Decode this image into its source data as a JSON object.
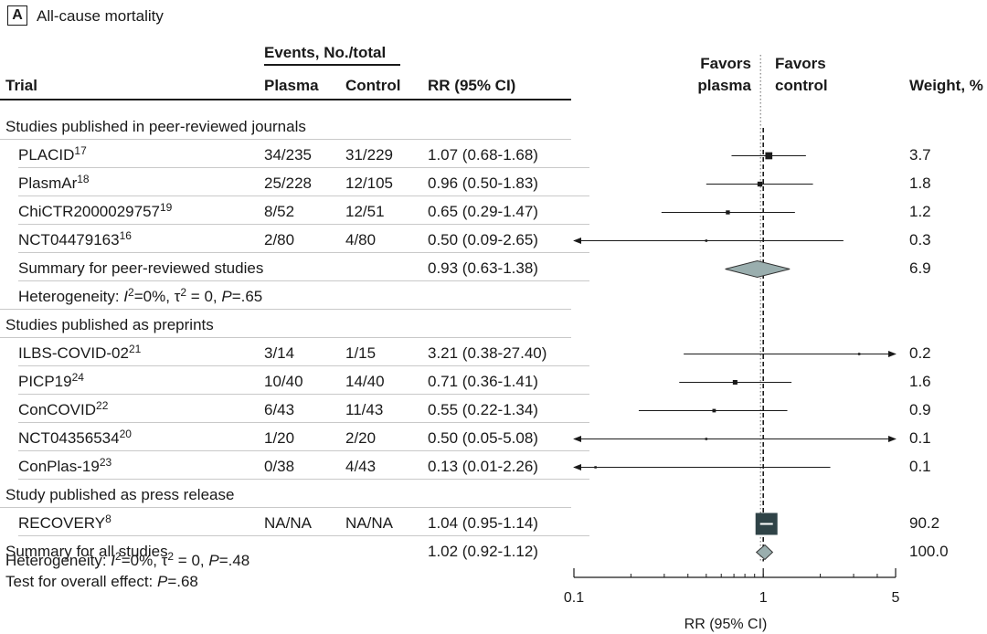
{
  "panel": {
    "letter": "A",
    "title": "All-cause mortality"
  },
  "headers": {
    "trial": "Trial",
    "events_group": "Events, No./total",
    "plasma": "Plasma",
    "control": "Control",
    "rr": "RR (95% CI)",
    "favors_left_1": "Favors",
    "favors_left_2": "plasma",
    "favors_right_1": "Favors",
    "favors_right_2": "control",
    "weight": "Weight, %"
  },
  "colors": {
    "study": "#1a1a1a",
    "diamond": "#9aaeae",
    "recovery_box": "#2f4347",
    "line": "#555555"
  },
  "chart_data": {
    "type": "forest",
    "scale": "log",
    "xlim": [
      0.1,
      5
    ],
    "ticks": [
      0.1,
      1,
      5
    ],
    "tick_labels": [
      "0.1",
      "1",
      "5"
    ],
    "xlabel": "RR (95% CI)",
    "reference_line": 1,
    "dotted_line": 1,
    "rows": [
      {
        "kind": "group",
        "label": "Studies published in peer-reviewed journals"
      },
      {
        "kind": "study",
        "trial": "PLACID",
        "ref": "17",
        "plasma": "34/235",
        "control": "31/229",
        "rr_text": "1.07 (0.68-1.68)",
        "rr": 1.07,
        "lo": 0.68,
        "hi": 1.68,
        "weight": "3.7"
      },
      {
        "kind": "study",
        "trial": "PlasmAr",
        "ref": "18",
        "plasma": "25/228",
        "control": "12/105",
        "rr_text": "0.96 (0.50-1.83)",
        "rr": 0.96,
        "lo": 0.5,
        "hi": 1.83,
        "weight": "1.8"
      },
      {
        "kind": "study",
        "trial": "ChiCTR2000029757",
        "ref": "19",
        "plasma": "8/52",
        "control": "12/51",
        "rr_text": "0.65 (0.29-1.47)",
        "rr": 0.65,
        "lo": 0.29,
        "hi": 1.47,
        "weight": "1.2"
      },
      {
        "kind": "study",
        "trial": "NCT04479163",
        "ref": "16",
        "plasma": "2/80",
        "control": "4/80",
        "rr_text": "0.50 (0.09-2.65)",
        "rr": 0.5,
        "lo": 0.09,
        "hi": 2.65,
        "weight": "0.3"
      },
      {
        "kind": "summary",
        "trial": "Summary for peer-reviewed studies",
        "rr_text": "0.93 (0.63-1.38)",
        "rr": 0.93,
        "lo": 0.63,
        "hi": 1.38,
        "weight": "6.9"
      },
      {
        "kind": "het",
        "prefix": "Heterogeneity: ",
        "i2_label": "I",
        "i2_value": "=0%, τ",
        "tau_value": " = 0, ",
        "p_label": "P",
        "p_value": "=.65"
      },
      {
        "kind": "group",
        "label": "Studies published as preprints"
      },
      {
        "kind": "study",
        "trial": "ILBS-COVID-02",
        "ref": "21",
        "plasma": "3/14",
        "control": "1/15",
        "rr_text": "3.21 (0.38-27.40)",
        "rr": 3.21,
        "lo": 0.38,
        "hi": 27.4,
        "weight": "0.2"
      },
      {
        "kind": "study",
        "trial": "PICP19",
        "ref": "24",
        "plasma": "10/40",
        "control": "14/40",
        "rr_text": "0.71 (0.36-1.41)",
        "rr": 0.71,
        "lo": 0.36,
        "hi": 1.41,
        "weight": "1.6"
      },
      {
        "kind": "study",
        "trial": "ConCOVID",
        "ref": "22",
        "plasma": "6/43",
        "control": "11/43",
        "rr_text": "0.55 (0.22-1.34)",
        "rr": 0.55,
        "lo": 0.22,
        "hi": 1.34,
        "weight": "0.9"
      },
      {
        "kind": "study",
        "trial": "NCT04356534",
        "ref": "20",
        "plasma": "1/20",
        "control": "2/20",
        "rr_text": "0.50 (0.05-5.08)",
        "rr": 0.5,
        "lo": 0.05,
        "hi": 5.08,
        "weight": "0.1"
      },
      {
        "kind": "study",
        "trial": "ConPlas-19",
        "ref": "23",
        "plasma": "0/38",
        "control": "4/43",
        "rr_text": "0.13 (0.01-2.26)",
        "rr": 0.13,
        "lo": 0.01,
        "hi": 2.26,
        "weight": "0.1"
      },
      {
        "kind": "group",
        "label": "Study published as press release"
      },
      {
        "kind": "study",
        "trial": "RECOVERY",
        "ref": "8",
        "plasma": "NA/NA",
        "control": "NA/NA",
        "rr_text": "1.04 (0.95-1.14)",
        "rr": 1.04,
        "lo": 0.95,
        "hi": 1.14,
        "weight": "90.2"
      },
      {
        "kind": "summary",
        "trial": "Summary for all studies",
        "rr_text": "1.02 (0.92-1.12)",
        "rr": 1.02,
        "lo": 0.92,
        "hi": 1.12,
        "weight": "100.0"
      }
    ]
  },
  "footer": {
    "het_prefix": "Heterogeneity: ",
    "het_i2_label": "I",
    "het_i2_value": "=0%, τ",
    "het_tau_value": " = 0, ",
    "het_p_label": "P",
    "het_p_value": "=.48",
    "test_prefix": "Test for overall effect: ",
    "test_p_label": "P",
    "test_p_value": "=.68"
  }
}
